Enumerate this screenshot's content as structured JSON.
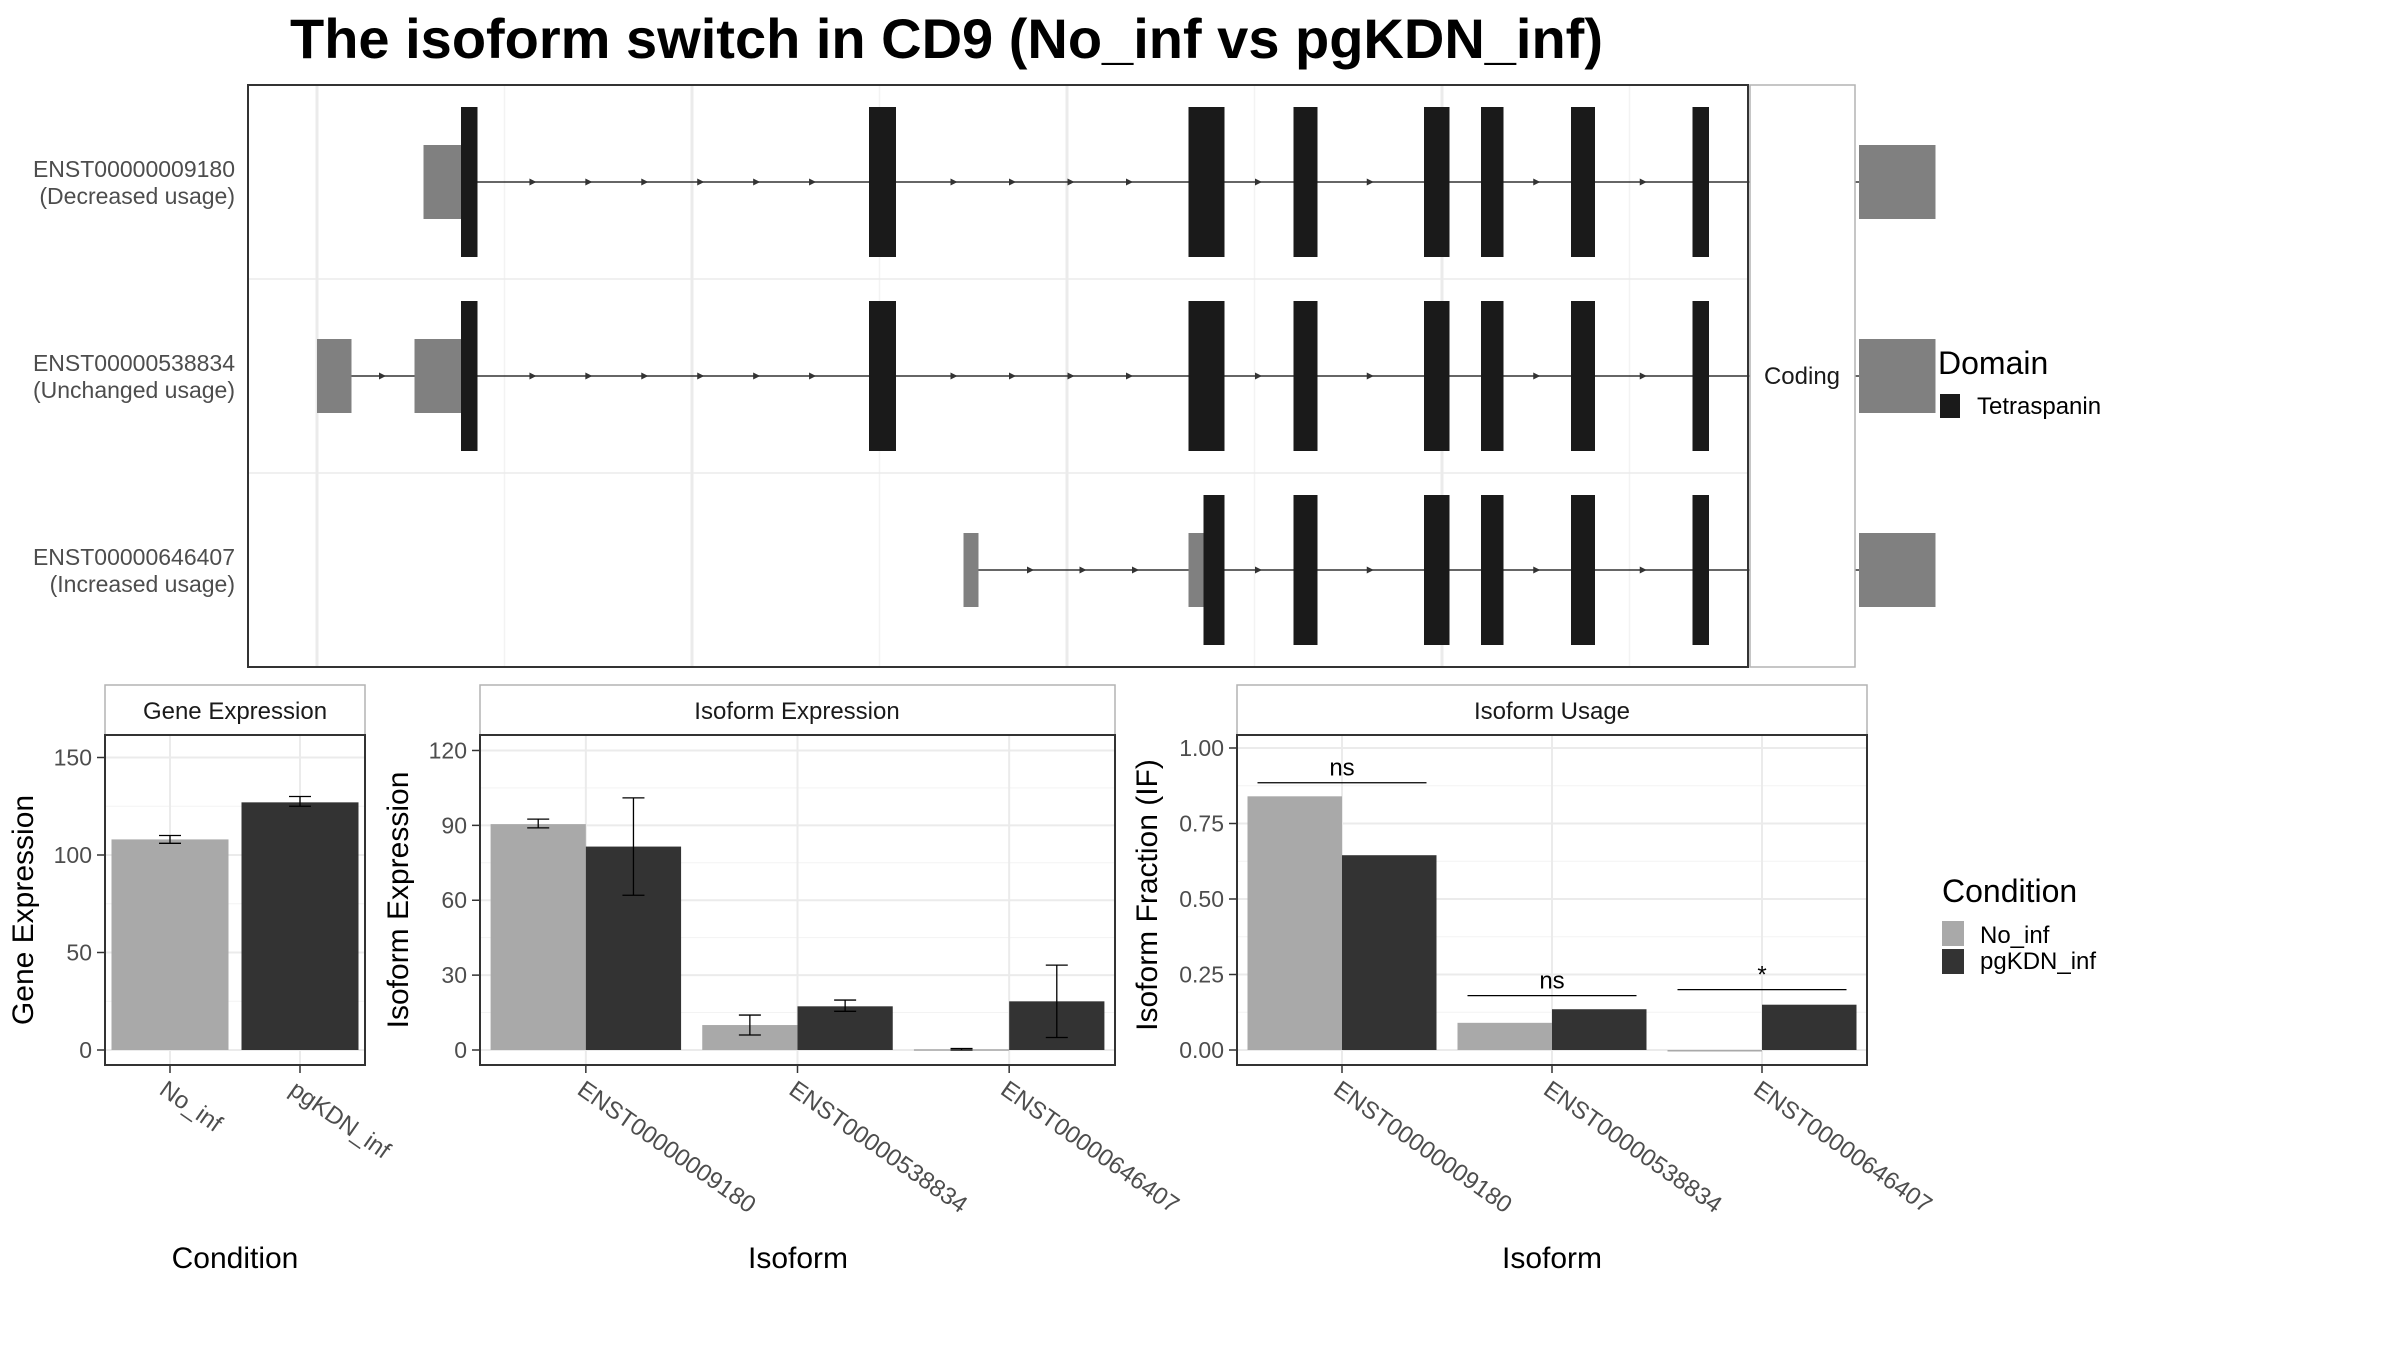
{
  "title": "The isoform switch in CD9 (No_inf vs pgKDN_inf)",
  "colors": {
    "domain": "#1a1a1a",
    "utr": "#808080",
    "no_inf": "#a9a9a9",
    "pgkdn_inf": "#333333",
    "grid": "#ebebeb",
    "panel_border": "#333333",
    "strip_border": "#b3b3b3"
  },
  "chart_data": [
    {
      "type": "gene-structure",
      "facet_label": "Coding",
      "transcripts": [
        {
          "id": "ENST00000009180",
          "annotation": "(Decreased usage)",
          "utr_blocks": [
            [
              0.117,
              0.142
            ],
            [
              1.074,
              1.125
            ]
          ],
          "cds_blocks": [
            [
              0.142,
              0.153
            ],
            [
              0.414,
              0.432
            ],
            [
              0.627,
              0.651
            ],
            [
              0.697,
              0.713
            ],
            [
              0.784,
              0.801
            ],
            [
              0.822,
              0.837
            ],
            [
              0.882,
              0.898
            ],
            [
              0.963,
              0.974
            ]
          ],
          "domain_blocks": [
            [
              0.142,
              0.153
            ],
            [
              0.414,
              0.432
            ],
            [
              0.627,
              0.651
            ],
            [
              0.697,
              0.713
            ],
            [
              0.784,
              0.801
            ],
            [
              0.822,
              0.837
            ],
            [
              0.882,
              0.898
            ],
            [
              0.963,
              0.974
            ]
          ],
          "line": [
            0.117,
            1.125
          ]
        },
        {
          "id": "ENST00000538834",
          "annotation": "(Unchanged usage)",
          "utr_blocks": [
            [
              0.046,
              0.069
            ],
            [
              0.111,
              0.142
            ],
            [
              1.074,
              1.125
            ]
          ],
          "cds_blocks": [
            [
              0.142,
              0.153
            ],
            [
              0.414,
              0.432
            ],
            [
              0.627,
              0.651
            ],
            [
              0.697,
              0.713
            ],
            [
              0.784,
              0.801
            ],
            [
              0.822,
              0.837
            ],
            [
              0.882,
              0.898
            ],
            [
              0.963,
              0.974
            ]
          ],
          "domain_blocks": [
            [
              0.142,
              0.153
            ],
            [
              0.414,
              0.432
            ],
            [
              0.627,
              0.651
            ],
            [
              0.697,
              0.713
            ],
            [
              0.784,
              0.801
            ],
            [
              0.822,
              0.837
            ],
            [
              0.882,
              0.898
            ],
            [
              0.963,
              0.974
            ]
          ],
          "line": [
            0.046,
            1.125
          ]
        },
        {
          "id": "ENST00000646407",
          "annotation": "(Increased usage)",
          "utr_blocks": [
            [
              0.477,
              0.487
            ],
            [
              0.627,
              0.637
            ],
            [
              1.074,
              1.125
            ]
          ],
          "cds_blocks": [
            [
              0.637,
              0.651
            ],
            [
              0.697,
              0.713
            ],
            [
              0.784,
              0.801
            ],
            [
              0.822,
              0.837
            ],
            [
              0.882,
              0.898
            ],
            [
              0.963,
              0.974
            ]
          ],
          "domain_blocks": [
            [
              0.637,
              0.651
            ],
            [
              0.697,
              0.713
            ],
            [
              0.784,
              0.801
            ],
            [
              0.822,
              0.837
            ],
            [
              0.882,
              0.898
            ],
            [
              0.963,
              0.974
            ]
          ],
          "line": [
            0.477,
            1.125
          ]
        }
      ],
      "legend": {
        "title": "Domain",
        "entries": [
          "Tetraspanin"
        ]
      }
    },
    {
      "type": "bar",
      "strip": "Gene Expression",
      "xlabel": "Condition",
      "ylabel": "Gene Expression",
      "ylim": [
        0,
        160
      ],
      "yticks": [
        0,
        50,
        100,
        150
      ],
      "categories": [
        "No_inf",
        "pgKDN_inf"
      ],
      "values": [
        108,
        127
      ],
      "errors": [
        [
          106,
          110
        ],
        [
          125,
          130
        ]
      ],
      "grid": true
    },
    {
      "type": "bar",
      "strip": "Isoform Expression",
      "xlabel": "Isoform",
      "ylabel": "Isoform Expression",
      "ylim": [
        0,
        125
      ],
      "yticks": [
        0,
        30,
        60,
        90,
        120
      ],
      "categories": [
        "ENST00000009180",
        "ENST00000538834",
        "ENST00000646407"
      ],
      "series": [
        {
          "name": "No_inf",
          "values": [
            90.5,
            10,
            0.3
          ],
          "errors": [
            [
              89,
              92.5
            ],
            [
              6,
              14
            ],
            [
              0,
              0.6
            ]
          ]
        },
        {
          "name": "pgKDN_inf",
          "values": [
            81.5,
            17.5,
            19.5
          ],
          "errors": [
            [
              62,
              101
            ],
            [
              15.5,
              20
            ],
            [
              5,
              34
            ]
          ]
        }
      ],
      "grid": true
    },
    {
      "type": "bar",
      "strip": "Isoform Usage",
      "xlabel": "Isoform",
      "ylabel": "Isoform Fraction (IF)",
      "ylim": [
        0,
        1.0
      ],
      "yticks": [
        "0.00",
        "0.25",
        "0.50",
        "0.75",
        "1.00"
      ],
      "categories": [
        "ENST00000009180",
        "ENST00000538834",
        "ENST00000646407"
      ],
      "series": [
        {
          "name": "No_inf",
          "values": [
            0.84,
            0.09,
            0.0
          ]
        },
        {
          "name": "pgKDN_inf",
          "values": [
            0.645,
            0.135,
            0.15
          ]
        }
      ],
      "significance": [
        {
          "label": "ns",
          "level": 0.885
        },
        {
          "label": "ns",
          "level": 0.18
        },
        {
          "label": "*",
          "level": 0.2
        }
      ],
      "grid": true
    }
  ],
  "legend_condition": {
    "title": "Condition",
    "entries": [
      "No_inf",
      "pgKDN_inf"
    ]
  }
}
